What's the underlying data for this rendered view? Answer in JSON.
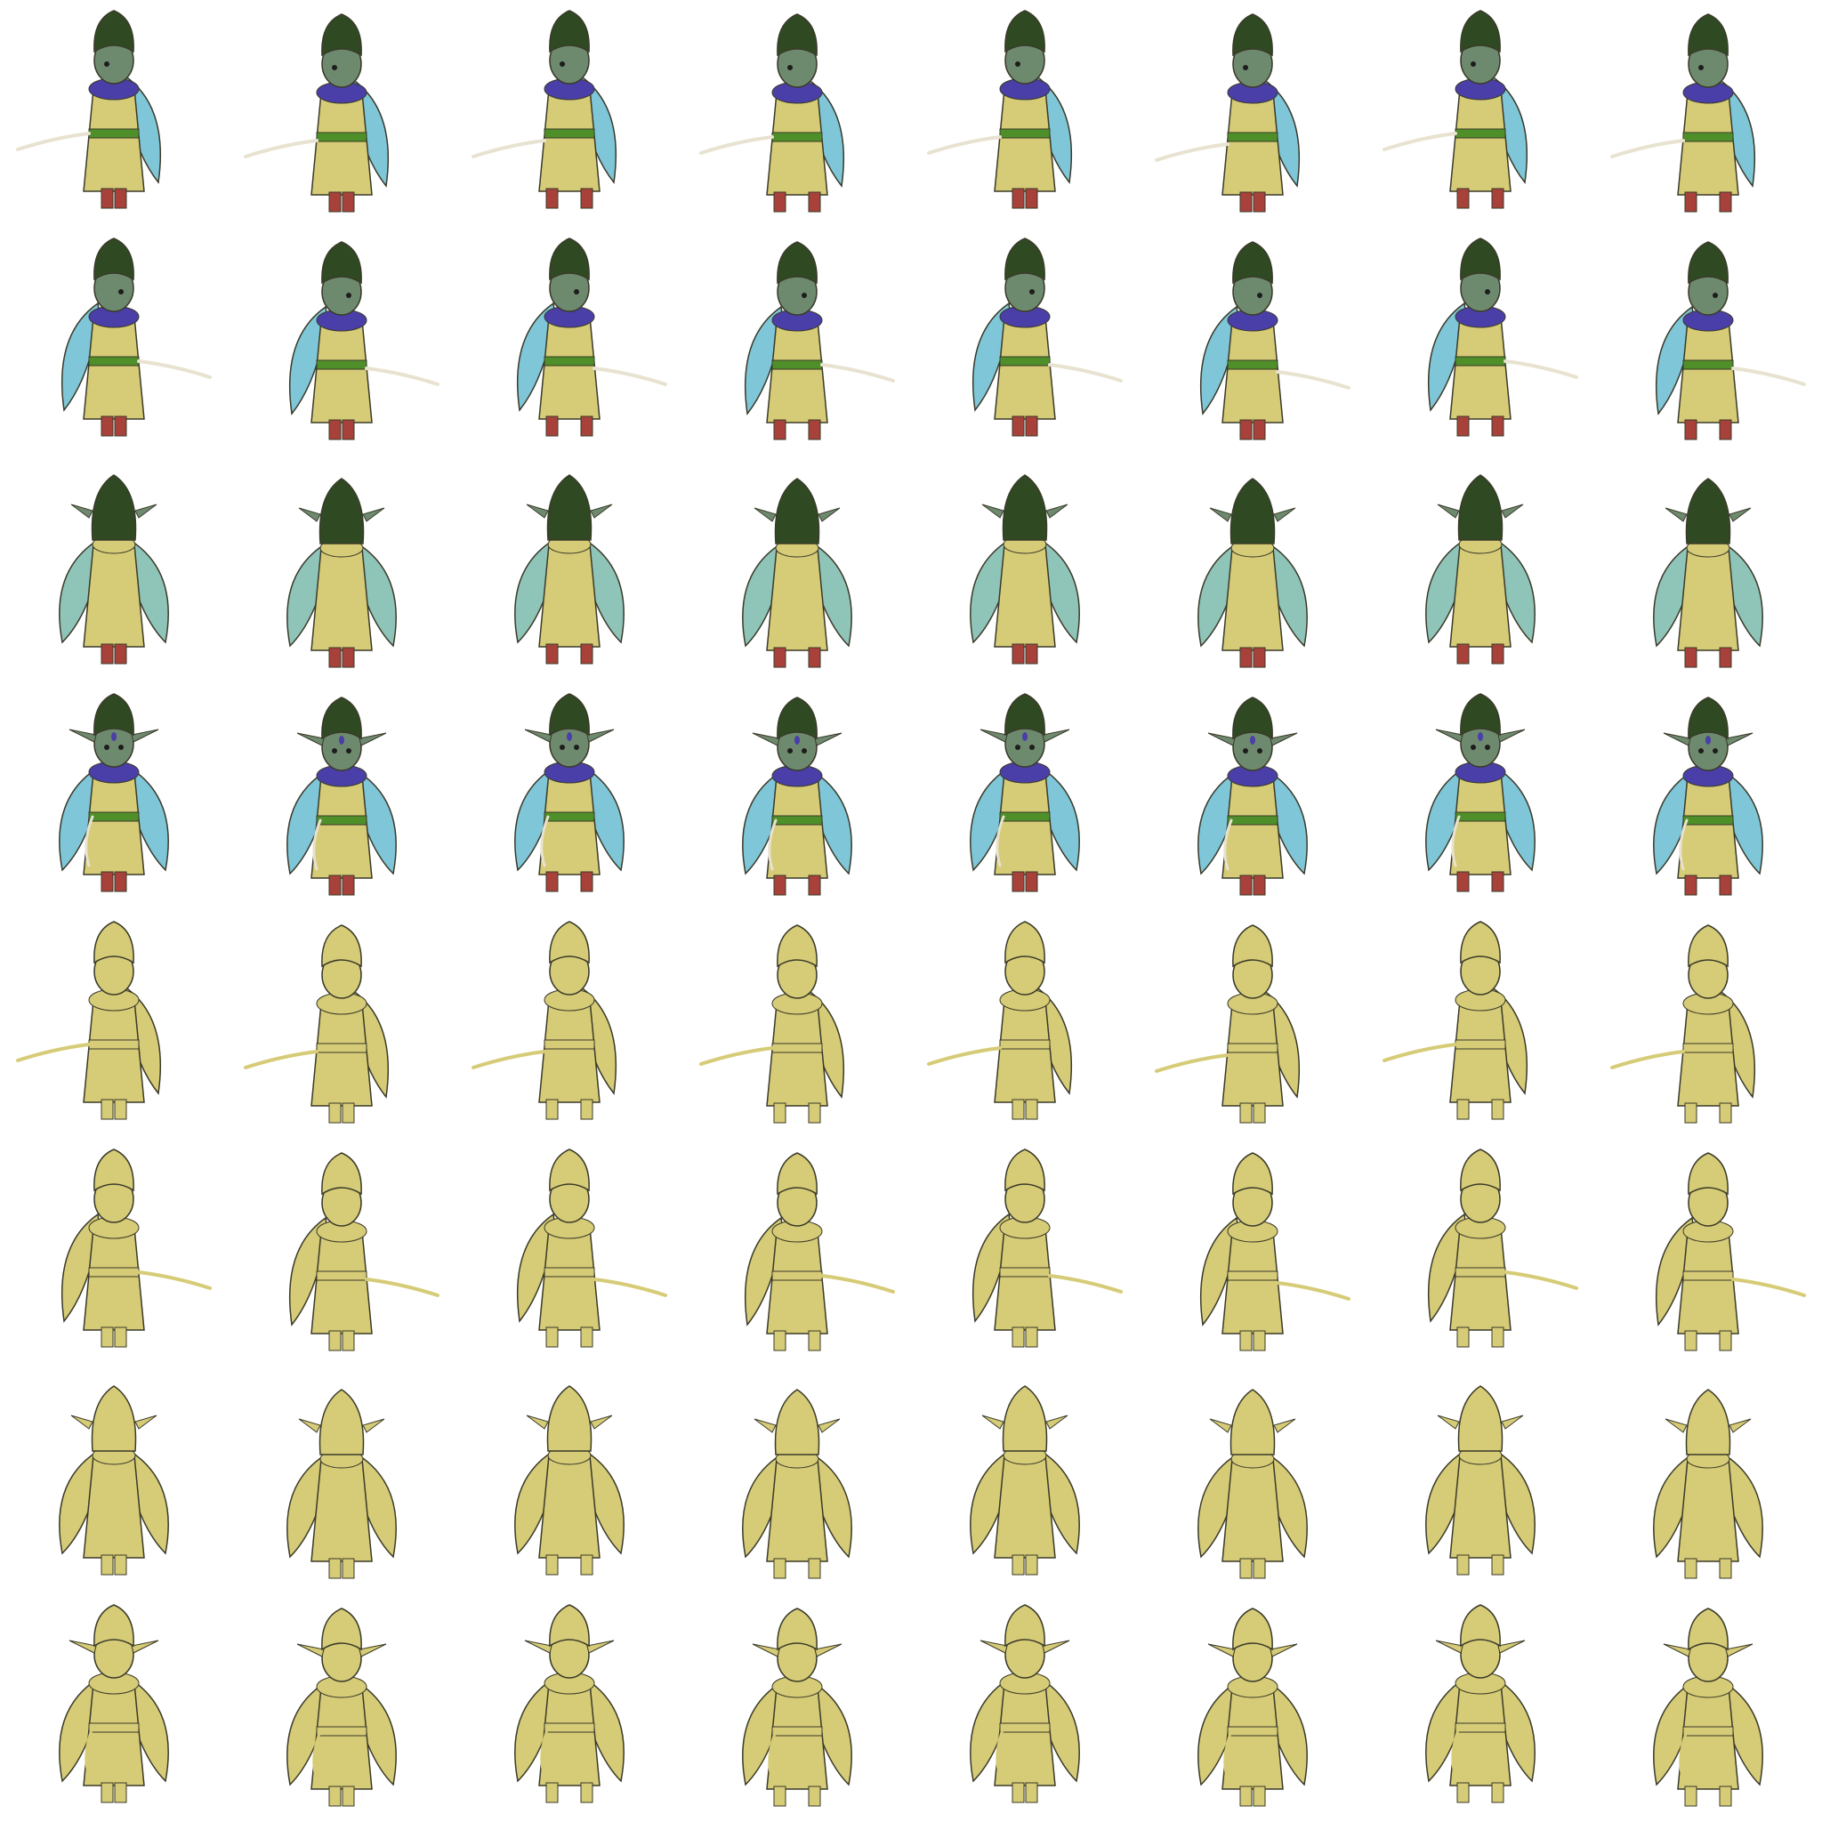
{
  "sheet": {
    "columns": 8,
    "rows": [
      {
        "direction": "left",
        "pose": "walk",
        "style": "color"
      },
      {
        "direction": "right",
        "pose": "walk",
        "style": "color"
      },
      {
        "direction": "back",
        "pose": "walk",
        "style": "color"
      },
      {
        "direction": "front",
        "pose": "walk",
        "style": "color"
      },
      {
        "direction": "left",
        "pose": "attack",
        "style": "flat"
      },
      {
        "direction": "right",
        "pose": "attack",
        "style": "flat"
      },
      {
        "direction": "back",
        "pose": "attack",
        "style": "flat"
      },
      {
        "direction": "front",
        "pose": "attack",
        "style": "flat"
      }
    ]
  },
  "palette": {
    "hair": "#2f4a22",
    "skin": "#6e8a6e",
    "scarf": "#4a3fa8",
    "robe": "#d6cb76",
    "belt": "#4f8f2a",
    "wing": "#7ec6d8",
    "wing_back": "#8fc4b8",
    "boots": "#a8413a",
    "blade": "#e8e2d0",
    "flat": "#d6cb76",
    "line": "#3a3a2a"
  }
}
